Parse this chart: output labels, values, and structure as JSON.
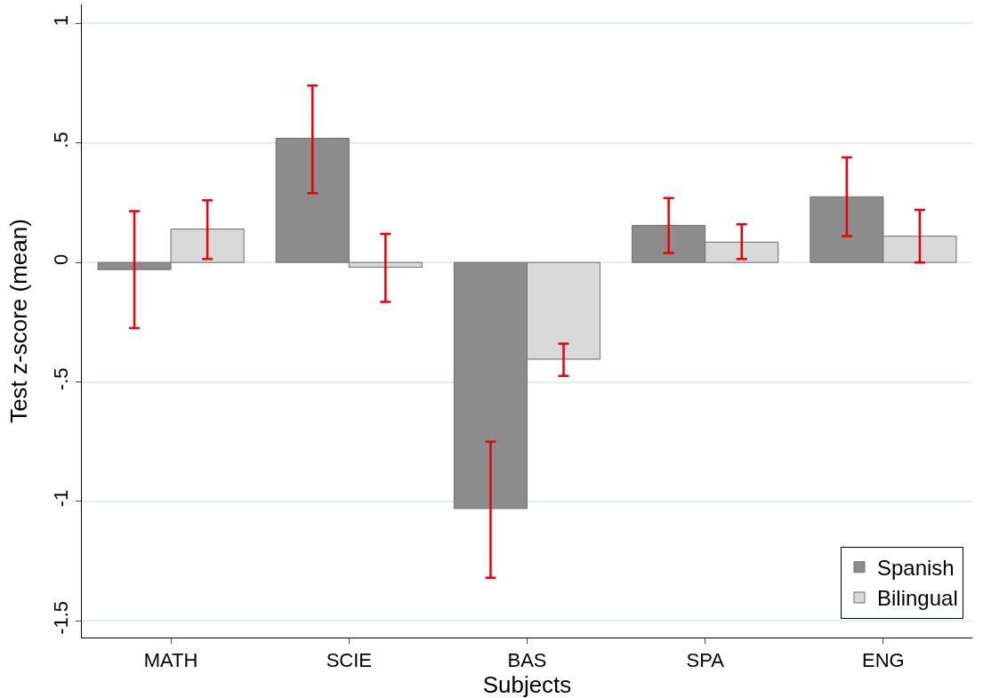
{
  "chart_data": {
    "type": "bar",
    "xlabel": "Subjects",
    "ylabel": "Test z-score (mean)",
    "categories": [
      "MATH",
      "SCIE",
      "BAS",
      "SPA",
      "ENG"
    ],
    "series": [
      {
        "name": "Spanish",
        "color": "#8c8c8c",
        "values": [
          -0.03,
          0.52,
          -1.03,
          0.155,
          0.275
        ],
        "errors": [
          [
            -0.275,
            0.215
          ],
          [
            0.29,
            0.74
          ],
          [
            -1.32,
            -0.75
          ],
          [
            0.04,
            0.27
          ],
          [
            0.11,
            0.44
          ]
        ]
      },
      {
        "name": "Bilingual",
        "color": "#d9d9d9",
        "values": [
          0.14,
          -0.02,
          -0.405,
          0.085,
          0.11
        ],
        "errors": [
          [
            0.015,
            0.26
          ],
          [
            -0.165,
            0.12
          ],
          [
            -0.475,
            -0.34
          ],
          [
            0.015,
            0.16
          ],
          [
            0,
            0.22
          ]
        ]
      }
    ],
    "ylim": [
      -1.57,
      1.08
    ],
    "yticks": [
      {
        "value": -1.5,
        "label": "-1.5"
      },
      {
        "value": -1,
        "label": "-1"
      },
      {
        "value": -0.5,
        "label": "-.5"
      },
      0,
      {
        "value": 0.5,
        "label": ".5"
      },
      1
    ],
    "grid": "y",
    "legend": "bottom right"
  }
}
